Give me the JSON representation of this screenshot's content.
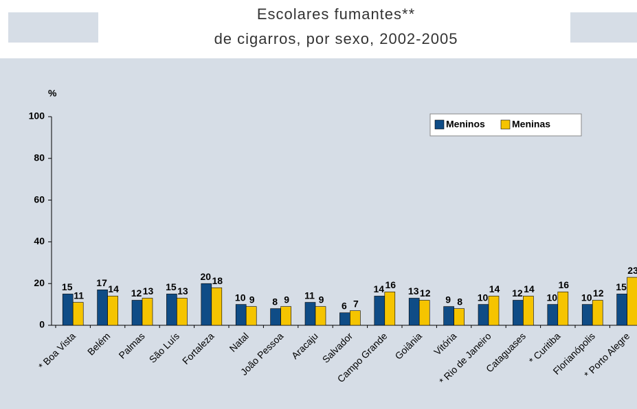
{
  "chart_data": {
    "type": "bar",
    "title": "Escolares fumantes**",
    "subtitle": "de cigarros, por sexo, 2002-2005",
    "y_label": "%",
    "categories": [
      "* Boa Vista",
      "Belém",
      "Palmas",
      "São Luís",
      "Fortaleza",
      "Natal",
      "João Pessoa",
      "Aracaju",
      "Salvador",
      "Campo Grande",
      "Goiânia",
      "Vitória",
      "* Rio de Janeiro",
      "Cataguases",
      "* Curitiba",
      "Florianópolis",
      "* Porto Alegre"
    ],
    "series": [
      {
        "name": "Meninos",
        "color": "#0f4c86",
        "values": [
          15,
          17,
          12,
          15,
          20,
          10,
          8,
          11,
          6,
          14,
          13,
          9,
          10,
          12,
          10,
          10,
          15
        ]
      },
      {
        "name": "Meninas",
        "color": "#f5c400",
        "values": [
          11,
          14,
          13,
          13,
          18,
          9,
          9,
          9,
          7,
          16,
          12,
          8,
          14,
          14,
          16,
          12,
          23
        ]
      }
    ],
    "ylim": [
      0,
      100
    ],
    "yticks": [
      0,
      20,
      40,
      60,
      80,
      100
    ],
    "grid": false,
    "legend": "upper right"
  }
}
